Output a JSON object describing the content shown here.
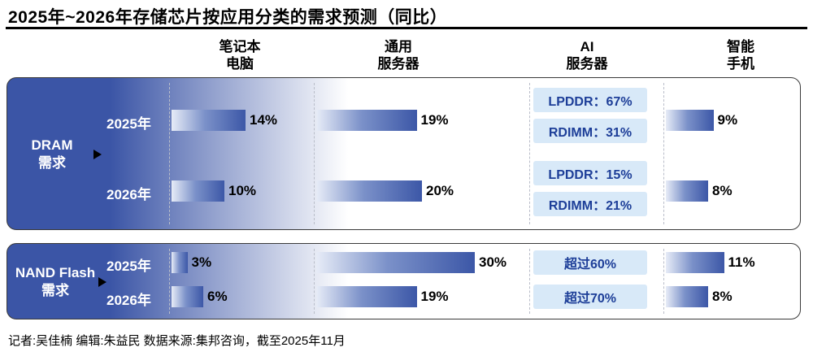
{
  "title": "2025年~2026年存储芯片按应用分类的需求预测（同比）",
  "columns": [
    {
      "line1": "笔记本",
      "line2": "电脑"
    },
    {
      "line1": "通用",
      "line2": "服务器"
    },
    {
      "line1": "AI",
      "line2": "服务器"
    },
    {
      "line1": "智能",
      "line2": "手机"
    }
  ],
  "footer": "记者:吴佳楠  编辑:朱益民  数据来源:集邦咨询，截至2025年11月",
  "colors": {
    "bar_blue": "#3c57a7",
    "section_blue": "#3b55a6",
    "pill_bg": "#d8e9f8",
    "pill_text": "#1d3e98"
  },
  "chart_data": {
    "type": "bar",
    "orientation": "horizontal",
    "unit": "%",
    "title": "2025年~2026年存储芯片按应用分类的需求预测（同比）",
    "columns": [
      "笔记本电脑",
      "通用服务器",
      "AI服务器",
      "智能手机"
    ],
    "sections": {
      "dram": {
        "name_line1": "DRAM",
        "name_line2": "需求",
        "rows": [
          {
            "year": "2025年",
            "laptop": {
              "value": 14,
              "label": "14%"
            },
            "server": {
              "value": 19,
              "label": "19%"
            },
            "ai": [
              "LPDDR：67%",
              "RDIMM：31%"
            ],
            "phone": {
              "value": 9,
              "label": "9%"
            }
          },
          {
            "year": "2026年",
            "laptop": {
              "value": 10,
              "label": "10%"
            },
            "server": {
              "value": 20,
              "label": "20%"
            },
            "ai": [
              "LPDDR：15%",
              "RDIMM：21%"
            ],
            "phone": {
              "value": 8,
              "label": "8%"
            }
          }
        ]
      },
      "nand": {
        "name_line1": "NAND Flash",
        "name_line2": "需求",
        "rows": [
          {
            "year": "2025年",
            "laptop": {
              "value": 3,
              "label": "3%"
            },
            "server": {
              "value": 30,
              "label": "30%"
            },
            "ai": [
              "超过60%"
            ],
            "phone": {
              "value": 11,
              "label": "11%"
            }
          },
          {
            "year": "2026年",
            "laptop": {
              "value": 6,
              "label": "6%"
            },
            "server": {
              "value": 19,
              "label": "19%"
            },
            "ai": [
              "超过70%"
            ],
            "phone": {
              "value": 8,
              "label": "8%"
            }
          }
        ]
      }
    }
  }
}
